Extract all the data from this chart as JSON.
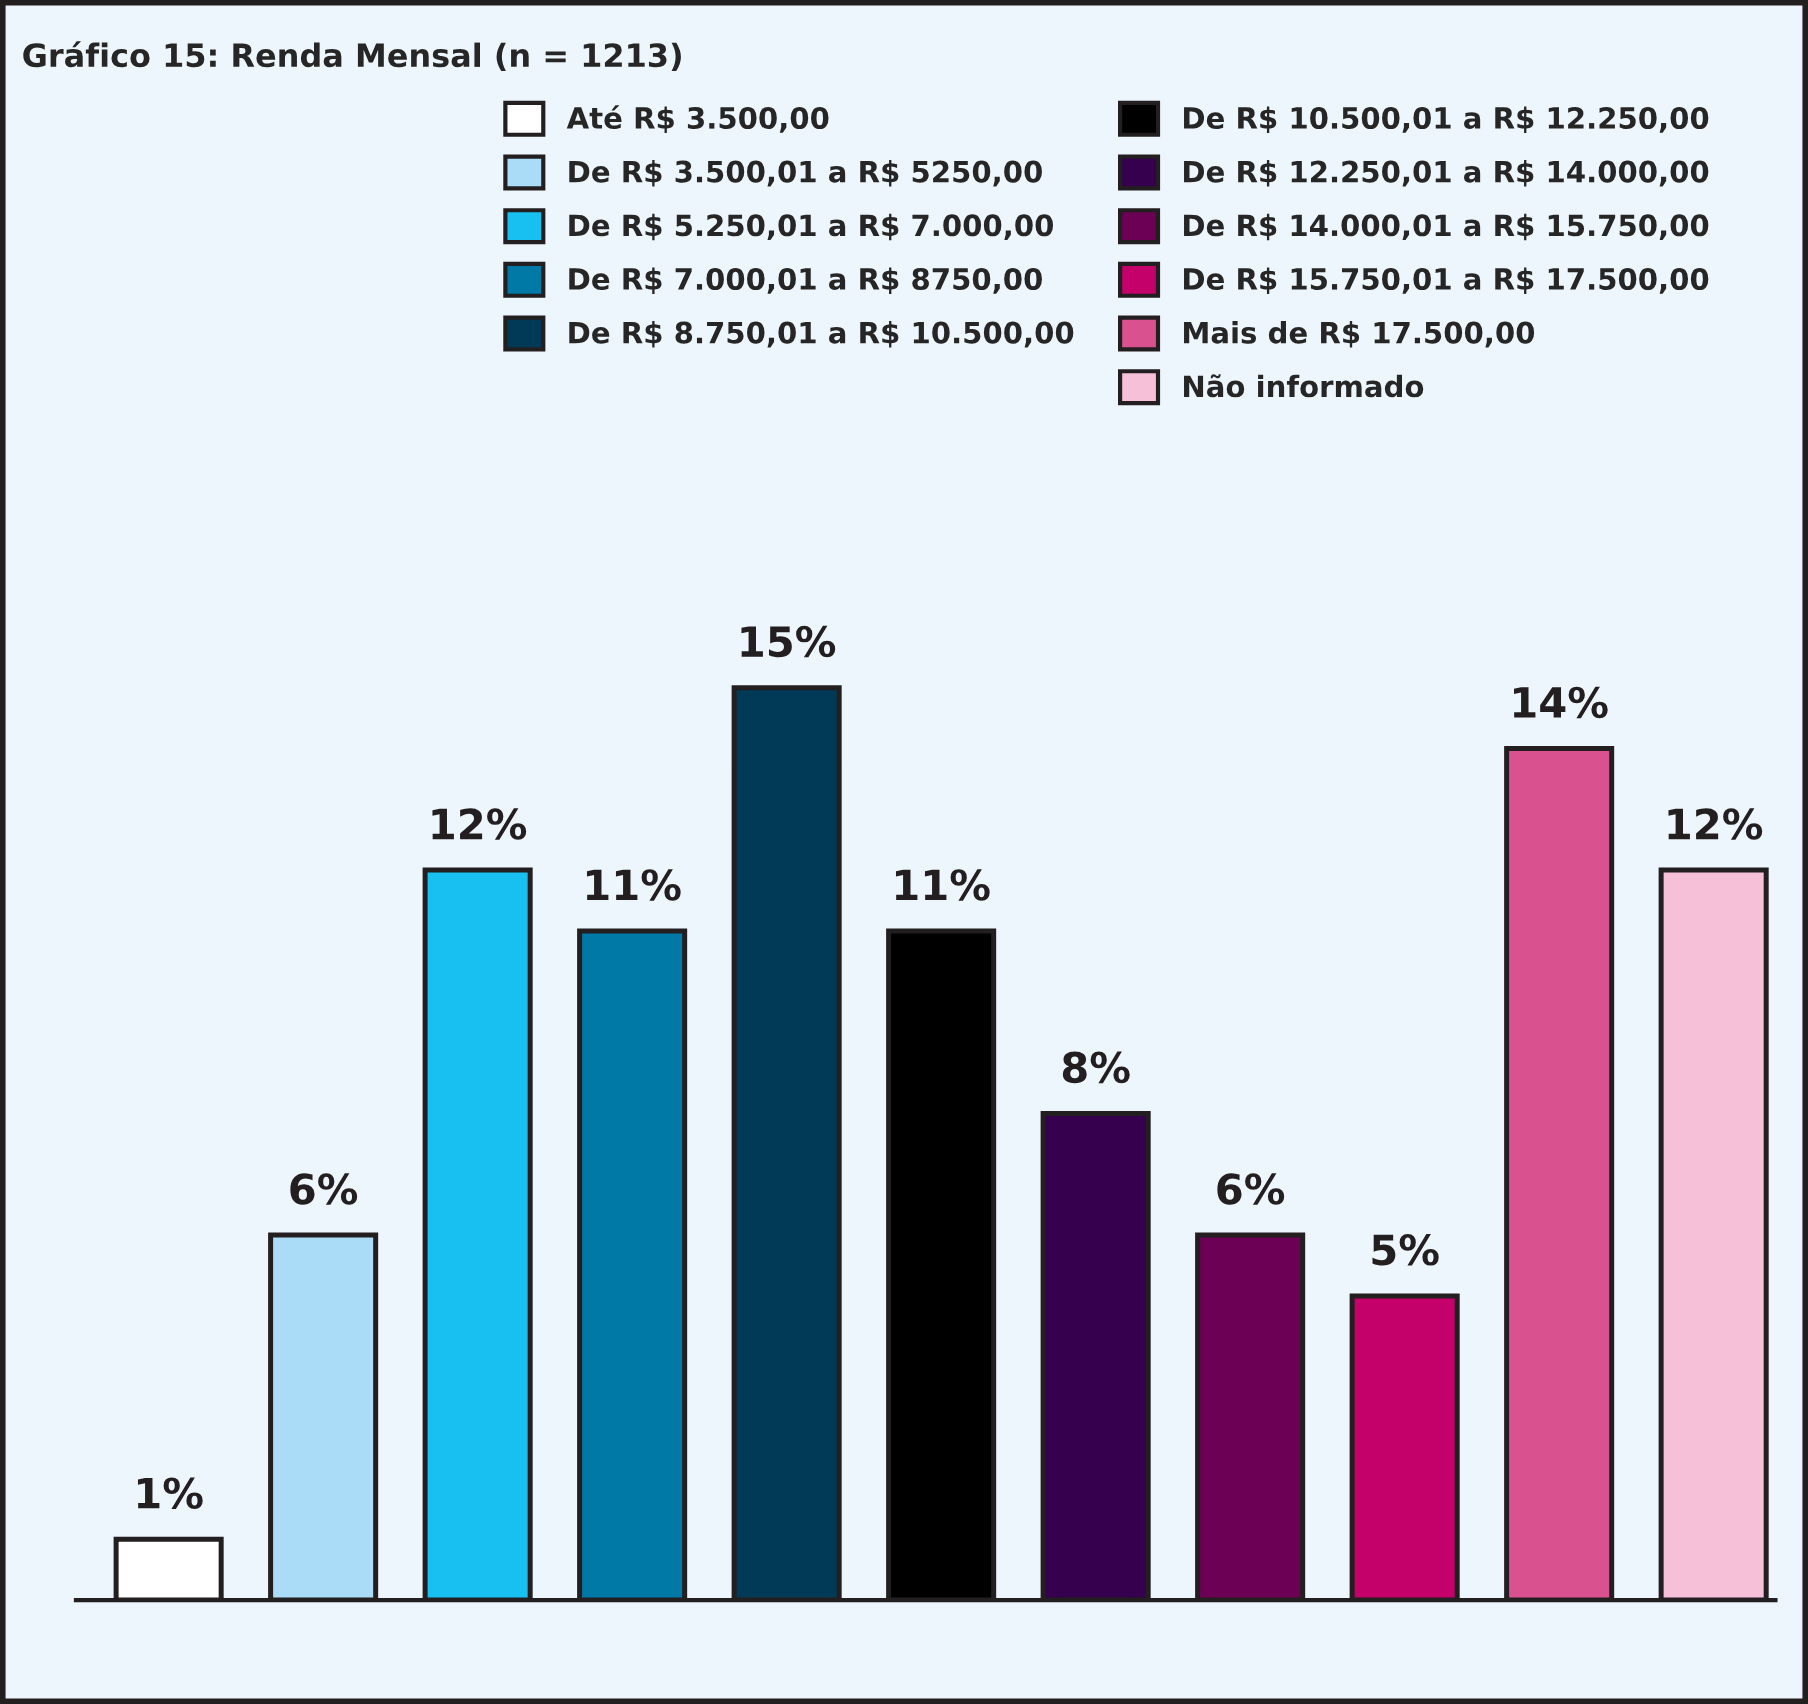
{
  "chart_data": {
    "type": "bar",
    "title": "Gráfico 15: Renda Mensal (n = 1213)",
    "categories": [
      null,
      null,
      null,
      null,
      null,
      null,
      null,
      null,
      null,
      null,
      null
    ],
    "series": [
      {
        "name": "Até R$ 3.500,00",
        "color": "#ffffff",
        "values": [
          1,
          null,
          null,
          null,
          null,
          null,
          null,
          null,
          null,
          null,
          null
        ],
        "value_labels": [
          "1%",
          null,
          null,
          null,
          null,
          null,
          null,
          null,
          null,
          null,
          null
        ]
      },
      {
        "name": "De R$ 3.500,01 a R$ 5250,00",
        "color": "#aadcf8",
        "values": [
          null,
          6,
          null,
          null,
          null,
          null,
          null,
          null,
          null,
          null,
          null
        ],
        "value_labels": [
          null,
          "6%",
          null,
          null,
          null,
          null,
          null,
          null,
          null,
          null,
          null
        ]
      },
      {
        "name": "De R$ 5.250,01 a R$ 7.000,00",
        "color": "#17c0f0",
        "values": [
          null,
          null,
          12,
          null,
          null,
          null,
          null,
          null,
          null,
          null,
          null
        ],
        "value_labels": [
          null,
          null,
          "12%",
          null,
          null,
          null,
          null,
          null,
          null,
          null,
          null
        ]
      },
      {
        "name": "De R$ 7.000,01 a R$ 8750,00",
        "color": "#0079a6",
        "values": [
          null,
          null,
          null,
          11,
          null,
          null,
          null,
          null,
          null,
          null,
          null
        ],
        "value_labels": [
          null,
          null,
          null,
          "11%",
          null,
          null,
          null,
          null,
          null,
          null,
          null
        ]
      },
      {
        "name": "De R$ 8.750,01 a R$ 10.500,00",
        "color": "#003a56",
        "values": [
          null,
          null,
          null,
          null,
          15,
          null,
          null,
          null,
          null,
          null,
          null
        ],
        "value_labels": [
          null,
          null,
          null,
          null,
          "15%",
          null,
          null,
          null,
          null,
          null,
          null
        ]
      },
      {
        "name": "De R$ 10.500,01 a R$ 12.250,00",
        "color": "#000000",
        "values": [
          null,
          null,
          null,
          null,
          null,
          11,
          null,
          null,
          null,
          null,
          null
        ],
        "value_labels": [
          null,
          null,
          null,
          null,
          null,
          "11%",
          null,
          null,
          null,
          null,
          null
        ]
      },
      {
        "name": "De R$ 12.250,01 a R$ 14.000,00",
        "color": "#36004f",
        "values": [
          null,
          null,
          null,
          null,
          null,
          null,
          8,
          null,
          null,
          null,
          null
        ],
        "value_labels": [
          null,
          null,
          null,
          null,
          null,
          null,
          "8%",
          null,
          null,
          null,
          null
        ]
      },
      {
        "name": "De R$ 14.000,01 a R$ 15.750,00",
        "color": "#6b0055",
        "values": [
          null,
          null,
          null,
          null,
          null,
          null,
          null,
          6,
          null,
          null,
          null
        ],
        "value_labels": [
          null,
          null,
          null,
          null,
          null,
          null,
          null,
          "6%",
          null,
          null,
          null
        ]
      },
      {
        "name": "De R$ 15.750,01 a R$ 17.500,00",
        "color": "#c4006a",
        "values": [
          null,
          null,
          null,
          null,
          null,
          null,
          null,
          null,
          5,
          null,
          null
        ],
        "value_labels": [
          null,
          null,
          null,
          null,
          null,
          null,
          null,
          null,
          "5%",
          null,
          null
        ]
      },
      {
        "name": "Mais de R$ 17.500,00",
        "color": "#d9528f",
        "values": [
          null,
          null,
          null,
          null,
          null,
          null,
          null,
          null,
          null,
          14,
          null
        ],
        "value_labels": [
          null,
          null,
          null,
          null,
          null,
          null,
          null,
          null,
          null,
          "14%",
          null
        ]
      },
      {
        "name": "Não informado",
        "color": "#f5c0d8",
        "values": [
          null,
          null,
          null,
          null,
          null,
          null,
          null,
          null,
          null,
          null,
          12
        ],
        "value_labels": [
          null,
          null,
          null,
          null,
          null,
          null,
          null,
          null,
          null,
          null,
          "12%"
        ]
      }
    ],
    "stacked": true,
    "legend": "top"
  }
}
